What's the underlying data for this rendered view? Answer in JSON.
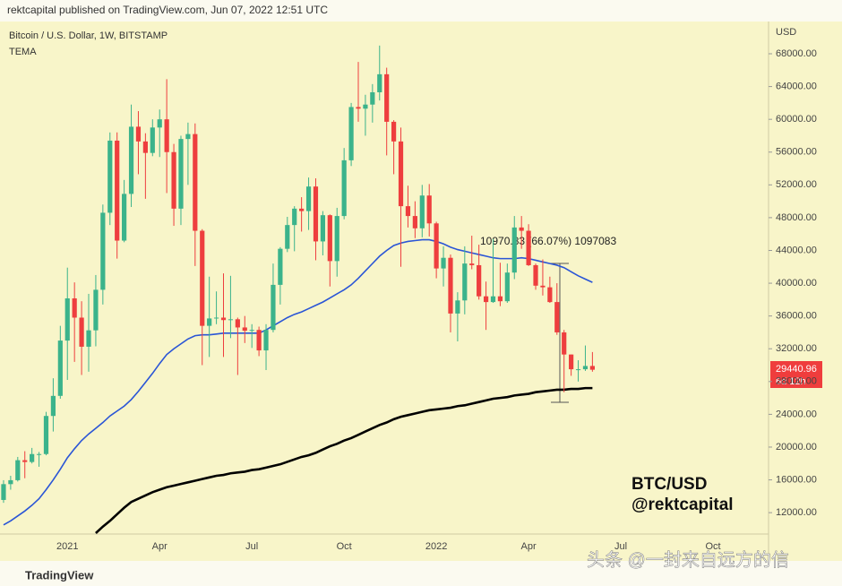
{
  "header": "rektcapital published on TradingView.com, Jun 07, 2022 12:51 UTC",
  "footer": {
    "logo": "TradingView",
    "watermark": "头条 @一封来自远方的信"
  },
  "chart_data": {
    "type": "candlestick",
    "title": "Bitcoin / U.S. Dollar, 1W, BITSTAMP",
    "indicator_label": "TEMA",
    "y_axis_unit": "USD",
    "up_color": "#3bb38b",
    "down_color": "#ee3e3e",
    "categories": [
      null,
      null,
      null,
      null,
      null,
      null,
      null,
      null,
      null,
      "2021",
      null,
      null,
      null,
      null,
      null,
      null,
      null,
      null,
      null,
      null,
      null,
      null,
      "Apr",
      null,
      null,
      null,
      null,
      null,
      null,
      null,
      null,
      null,
      null,
      null,
      null,
      "Jul",
      null,
      null,
      null,
      null,
      null,
      null,
      null,
      null,
      null,
      null,
      null,
      null,
      "Oct",
      null,
      null,
      null,
      null,
      null,
      null,
      null,
      null,
      null,
      null,
      null,
      null,
      "2022",
      null,
      null,
      null,
      null,
      null,
      null,
      null,
      null,
      null,
      null,
      null,
      null,
      "Apr",
      null,
      null,
      null,
      null,
      null,
      null,
      null,
      null,
      null,
      null,
      null,
      null,
      "Jul",
      null,
      null,
      null,
      null,
      null,
      null,
      null,
      null,
      null,
      null,
      null,
      null,
      "Oct"
    ],
    "open": [
      13550,
      15480,
      15960,
      18400,
      18180,
      19150,
      19150,
      23800,
      26250,
      33000,
      38150,
      35800,
      32250,
      34250,
      39200,
      48600,
      57400,
      45200,
      50900,
      59100,
      57300,
      55900,
      59000,
      60000,
      56000,
      49100,
      57600,
      58200,
      46400,
      34800,
      35700,
      35800,
      35500,
      35600,
      34600,
      34200,
      34300,
      31800,
      34300,
      39800,
      44200,
      47100,
      49100,
      48800,
      51800,
      45100,
      48300,
      42700,
      48200,
      55000,
      61500,
      61300,
      61800,
      63300,
      65500,
      59700,
      57300,
      49400,
      48200,
      46700,
      50700,
      47300,
      41800,
      43100,
      36300,
      37900,
      42400,
      42200,
      38400,
      37700,
      38400,
      37800,
      41300,
      46800,
      46400,
      42200,
      39700,
      39500,
      37700,
      34000,
      31300,
      29500,
      29500,
      29900,
      null,
      null,
      null,
      null,
      null,
      null,
      null,
      null,
      null,
      null,
      null,
      null,
      null,
      null,
      null,
      null,
      null
    ],
    "high": [
      15960,
      16500,
      18800,
      19500,
      19900,
      19400,
      24300,
      28400,
      34800,
      41900,
      40100,
      37800,
      38700,
      41000,
      49600,
      58400,
      58400,
      52600,
      61800,
      61000,
      58300,
      60000,
      61200,
      64900,
      57000,
      58000,
      59600,
      59500,
      46600,
      40800,
      39000,
      41200,
      40900,
      35800,
      36000,
      35000,
      34700,
      35000,
      42400,
      44400,
      48100,
      49400,
      50500,
      52900,
      52800,
      48800,
      48400,
      49200,
      56500,
      62000,
      67000,
      63000,
      64300,
      69000,
      66300,
      59900,
      59000,
      51900,
      50000,
      52000,
      52100,
      47500,
      44500,
      43500,
      38900,
      44500,
      45800,
      44700,
      40200,
      45400,
      42500,
      42400,
      48200,
      48200,
      47200,
      42400,
      42900,
      40800,
      40000,
      34300,
      31300,
      30600,
      32400,
      31600,
      null,
      null,
      null,
      null,
      null,
      null,
      null,
      null,
      null,
      null,
      null,
      null,
      null,
      null,
      null,
      null,
      null
    ],
    "low": [
      13200,
      14800,
      15800,
      16200,
      18000,
      17600,
      19000,
      21900,
      25900,
      28200,
      30400,
      28800,
      29200,
      32300,
      37400,
      47100,
      43000,
      45000,
      49300,
      53300,
      50300,
      55500,
      55400,
      51000,
      47000,
      47100,
      52000,
      42100,
      30000,
      31000,
      35000,
      31000,
      33300,
      28800,
      32700,
      32100,
      31100,
      29400,
      34000,
      37400,
      43800,
      43900,
      46300,
      46500,
      42800,
      43400,
      39600,
      40800,
      47800,
      54300,
      59700,
      58000,
      59600,
      62300,
      55600,
      53300,
      42000,
      46800,
      45500,
      45600,
      45700,
      40600,
      39600,
      34000,
      32900,
      36200,
      41700,
      38000,
      34300,
      37600,
      37200,
      37600,
      40500,
      44200,
      42100,
      39200,
      38500,
      37600,
      33700,
      26700,
      28700,
      28000,
      29300,
      29200,
      null,
      null,
      null,
      null,
      null,
      null,
      null,
      null,
      null,
      null,
      null,
      null,
      null,
      null,
      null,
      null,
      null
    ],
    "close": [
      15480,
      15960,
      18400,
      18180,
      19150,
      19150,
      23800,
      26250,
      33000,
      38150,
      35800,
      32250,
      34250,
      39200,
      48600,
      57400,
      45200,
      50900,
      59100,
      57300,
      55900,
      59000,
      60000,
      56000,
      49100,
      57600,
      58200,
      46400,
      34800,
      35700,
      35800,
      35500,
      35600,
      34600,
      34200,
      34300,
      31800,
      34300,
      39800,
      44200,
      47100,
      49100,
      48800,
      51800,
      45100,
      48300,
      42700,
      48200,
      55000,
      61500,
      61300,
      61800,
      63300,
      65500,
      59700,
      57300,
      49400,
      48200,
      46700,
      50700,
      47300,
      41800,
      43100,
      36300,
      37900,
      42400,
      42200,
      38400,
      37700,
      38400,
      37800,
      41300,
      46800,
      46400,
      42200,
      39700,
      39500,
      37700,
      34000,
      31300,
      29500,
      29500,
      29900,
      29440.96,
      null,
      null,
      null,
      null,
      null,
      null,
      null,
      null,
      null,
      null,
      null,
      null,
      null,
      null,
      null,
      null,
      null
    ],
    "lines": [
      {
        "color": "#2a55d6",
        "values": [
          10500,
          11000,
          11600,
          12200,
          12900,
          13700,
          14800,
          16000,
          17300,
          18700,
          19800,
          20800,
          21600,
          22300,
          23000,
          23800,
          24400,
          25000,
          25800,
          26800,
          27900,
          29000,
          30200,
          31300,
          32000,
          32600,
          33200,
          33600,
          33700,
          33700,
          33800,
          33900,
          33900,
          33900,
          33900,
          33900,
          33900,
          34300,
          34800,
          35300,
          35800,
          36200,
          36500,
          36900,
          37300,
          37700,
          38200,
          38700,
          39200,
          39800,
          40600,
          41500,
          42400,
          43300,
          44000,
          44600,
          44900,
          45100,
          45200,
          45300,
          45300,
          45100,
          44800,
          44400,
          44100,
          43900,
          43700,
          43500,
          43300,
          43100,
          43000,
          43000,
          43000,
          43100,
          43000,
          42800,
          42600,
          42400,
          42200,
          41900,
          41400,
          40900,
          40500,
          40100,
          null,
          null,
          null,
          null,
          null,
          null,
          null,
          null,
          null,
          null,
          null,
          null,
          null,
          null,
          null,
          null,
          null
        ]
      },
      {
        "color": "#000000",
        "values": [
          null,
          null,
          null,
          null,
          null,
          null,
          null,
          null,
          null,
          null,
          null,
          null,
          null,
          9500,
          10300,
          11000,
          11800,
          12600,
          13300,
          13700,
          14100,
          14500,
          14800,
          15100,
          15300,
          15500,
          15700,
          15900,
          16100,
          16300,
          16500,
          16600,
          16800,
          16900,
          17000,
          17200,
          17300,
          17500,
          17700,
          17900,
          18200,
          18500,
          18800,
          19000,
          19300,
          19700,
          20100,
          20400,
          20800,
          21100,
          21500,
          21900,
          22300,
          22700,
          23000,
          23400,
          23700,
          23900,
          24100,
          24300,
          24500,
          24600,
          24700,
          24800,
          25000,
          25100,
          25300,
          25500,
          25700,
          25900,
          26000,
          26100,
          26300,
          26400,
          26500,
          26700,
          26800,
          26900,
          27000,
          27000,
          27100,
          27100,
          27200,
          27200,
          null,
          null,
          null,
          null,
          null,
          null,
          null,
          null,
          null,
          null,
          null,
          null,
          null,
          null,
          null,
          null,
          null
        ]
      }
    ],
    "annotations": {
      "measure": "10970.83 (66.07%) 1097083",
      "countdown": "6d 12h",
      "pair": "BTC/USD",
      "author": "@rektcapital"
    },
    "ylim": [
      9500,
      71500
    ],
    "yticks": [
      {
        "value": 12000,
        "label": "12000.00"
      },
      {
        "value": 16000,
        "label": "16000.00"
      },
      {
        "value": 20000,
        "label": "20000.00"
      },
      {
        "value": 24000,
        "label": "24000.00"
      },
      {
        "value": 28000,
        "label": "28000.00"
      },
      {
        "value": 32000,
        "label": "32000.00"
      },
      {
        "value": 36000,
        "label": "36000.00"
      },
      {
        "value": 40000,
        "label": "40000.00"
      },
      {
        "value": 44000,
        "label": "44000.00"
      },
      {
        "value": 48000,
        "label": "48000.00"
      },
      {
        "value": 52000,
        "label": "52000.00"
      },
      {
        "value": 56000,
        "label": "56000.00"
      },
      {
        "value": 60000,
        "label": "60000.00"
      },
      {
        "value": 64000,
        "label": "64000.00"
      },
      {
        "value": 68000,
        "label": "68000.00"
      }
    ],
    "grid": false
  }
}
